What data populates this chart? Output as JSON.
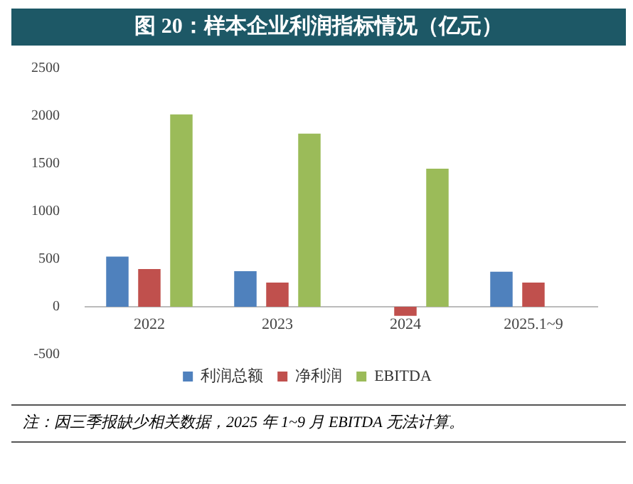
{
  "chart_data": {
    "type": "bar",
    "title": "图 20：样本企业利润指标情况（亿元）",
    "categories": [
      "2022",
      "2023",
      "2024",
      "2025.1~9"
    ],
    "series": [
      {
        "name": "利润总额",
        "color": "#4f81bd",
        "values": [
          526,
          374,
          null,
          368
        ]
      },
      {
        "name": "净利润",
        "color": "#c0504d",
        "values": [
          395,
          253,
          -95,
          253
        ]
      },
      {
        "name": "EBITDA",
        "color": "#9bbb59",
        "values": [
          2016,
          1816,
          1447,
          null
        ]
      }
    ],
    "ylim": [
      -500,
      2500
    ],
    "yticks": [
      -500,
      0,
      500,
      1000,
      1500,
      2000,
      2500
    ],
    "grid": false,
    "legend": "bottom",
    "annotations": [
      "注：因三季报缺少相关数据，2025 年 1~9 月 EBITDA 无法计算。"
    ]
  }
}
